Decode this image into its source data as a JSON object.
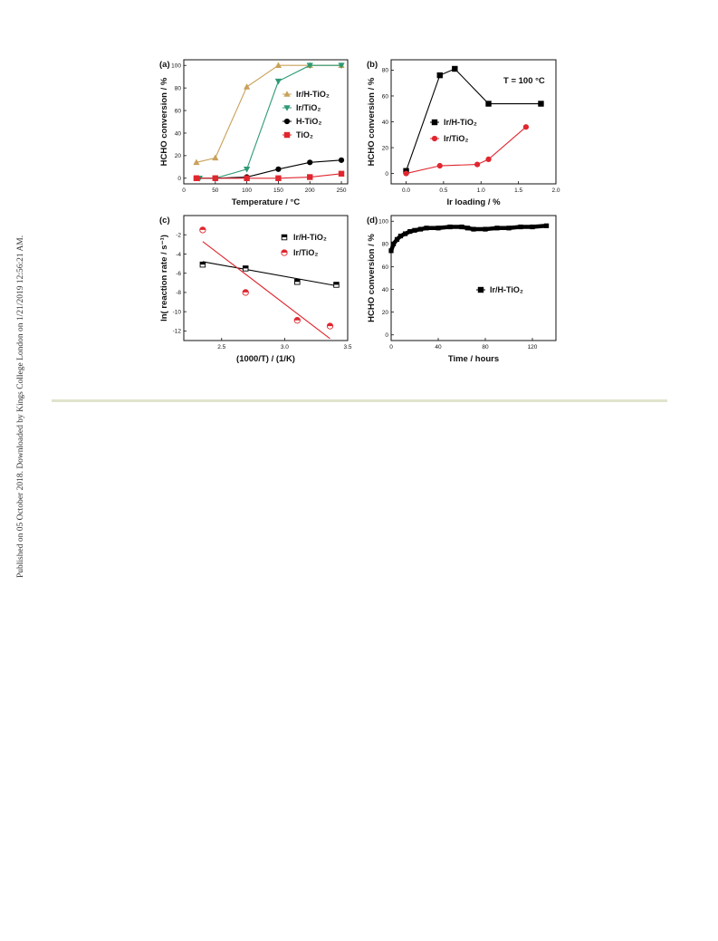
{
  "page": {
    "side_note": "Published on 05 October 2018. Downloaded by Kings College London on 1/21/2019 12:56:21 AM."
  },
  "chart_data": [
    {
      "panel": "(a)",
      "type": "line",
      "xlabel": "Temperature / °C",
      "ylabel": "HCHO conversion / %",
      "xlim": [
        0,
        260
      ],
      "ylim": [
        -5,
        105
      ],
      "xticks": [
        0,
        50,
        100,
        150,
        200,
        250
      ],
      "yticks": [
        0,
        20,
        40,
        60,
        80,
        100
      ],
      "legend_position": "right",
      "series": [
        {
          "name": "Ir/H-TiO₂",
          "color": "#c9a15a",
          "marker": "triangle-up",
          "x": [
            20,
            50,
            100,
            150,
            200,
            250
          ],
          "y": [
            14,
            18,
            81,
            100,
            100,
            100
          ]
        },
        {
          "name": "Ir/TiO₂",
          "color": "#2e9a74",
          "marker": "triangle-down",
          "x": [
            25,
            50,
            100,
            150,
            200,
            250
          ],
          "y": [
            0,
            0,
            8,
            86,
            100,
            100
          ]
        },
        {
          "name": "H-TiO₂",
          "color": "#000000",
          "marker": "circle",
          "x": [
            20,
            50,
            100,
            150,
            200,
            250
          ],
          "y": [
            0,
            0,
            1,
            8,
            14,
            16
          ]
        },
        {
          "name": "TiO₂",
          "color": "#e0262f",
          "marker": "square",
          "x": [
            20,
            50,
            100,
            150,
            200,
            250
          ],
          "y": [
            0,
            0,
            0,
            0,
            1,
            4
          ]
        }
      ]
    },
    {
      "panel": "(b)",
      "type": "line",
      "xlabel": "Ir loading / %",
      "ylabel": "HCHO conversion / %",
      "xlim": [
        -0.2,
        2.0
      ],
      "ylim": [
        -8,
        88
      ],
      "xticks": [
        0.0,
        0.5,
        1.0,
        1.5,
        2.0
      ],
      "yticks": [
        0,
        20,
        40,
        60,
        80
      ],
      "annotation": "T = 100 °C",
      "legend_position": "left",
      "series": [
        {
          "name": "Ir/H-TiO₂",
          "color": "#000000",
          "marker": "square",
          "x": [
            0.0,
            0.45,
            0.65,
            1.1,
            1.8
          ],
          "y": [
            2,
            76,
            81,
            54,
            54
          ]
        },
        {
          "name": "Ir/TiO₂",
          "color": "#e0262f",
          "marker": "circle",
          "x": [
            0.0,
            0.45,
            0.95,
            1.1,
            1.6
          ],
          "y": [
            0,
            6,
            7,
            11,
            36
          ]
        }
      ]
    },
    {
      "panel": "(c)",
      "type": "scatter",
      "xlabel": "(1000/T) / (1/K)",
      "ylabel": "ln( reaction rate / s⁻¹)",
      "xlim": [
        2.2,
        3.5
      ],
      "ylim": [
        -13,
        0
      ],
      "xticks": [
        2.5,
        3.0,
        3.5
      ],
      "yticks": [
        -2,
        -4,
        -6,
        -8,
        -10,
        -12
      ],
      "legend_position": "top-right",
      "series": [
        {
          "name": "Ir/H-TiO₂",
          "color": "#000000",
          "marker": "half-square",
          "x": [
            2.35,
            2.69,
            3.1,
            3.41
          ],
          "y": [
            -5.1,
            -5.5,
            -6.9,
            -7.2
          ],
          "fit": [
            [
              2.35,
              -4.8
            ],
            [
              3.41,
              -7.3
            ]
          ]
        },
        {
          "name": "Ir/TiO₂",
          "color": "#e0262f",
          "marker": "half-circle",
          "x": [
            2.35,
            2.69,
            3.1,
            3.36
          ],
          "y": [
            -1.5,
            -8.0,
            -10.9,
            -11.5
          ],
          "fit": [
            [
              2.35,
              -2.7
            ],
            [
              3.36,
              -12.8
            ]
          ]
        }
      ]
    },
    {
      "panel": "(d)",
      "type": "line",
      "xlabel": "Time / hours",
      "ylabel": "HCHO conversion / %",
      "xlim": [
        0,
        140
      ],
      "ylim": [
        -5,
        105
      ],
      "xticks": [
        0,
        40,
        80,
        120
      ],
      "yticks": [
        0,
        20,
        40,
        60,
        80,
        100
      ],
      "legend_position": "right",
      "series": [
        {
          "name": "Ir/H-TiO₂",
          "color": "#000000",
          "marker": "square-dense",
          "x": [
            0,
            2,
            5,
            8,
            12,
            16,
            20,
            25,
            30,
            40,
            50,
            60,
            65,
            70,
            80,
            90,
            100,
            110,
            120,
            132
          ],
          "y": [
            74,
            80,
            84,
            87,
            89,
            91,
            92,
            93,
            94,
            94,
            95,
            95,
            94,
            93,
            93,
            94,
            94,
            95,
            95,
            96
          ]
        }
      ]
    }
  ]
}
